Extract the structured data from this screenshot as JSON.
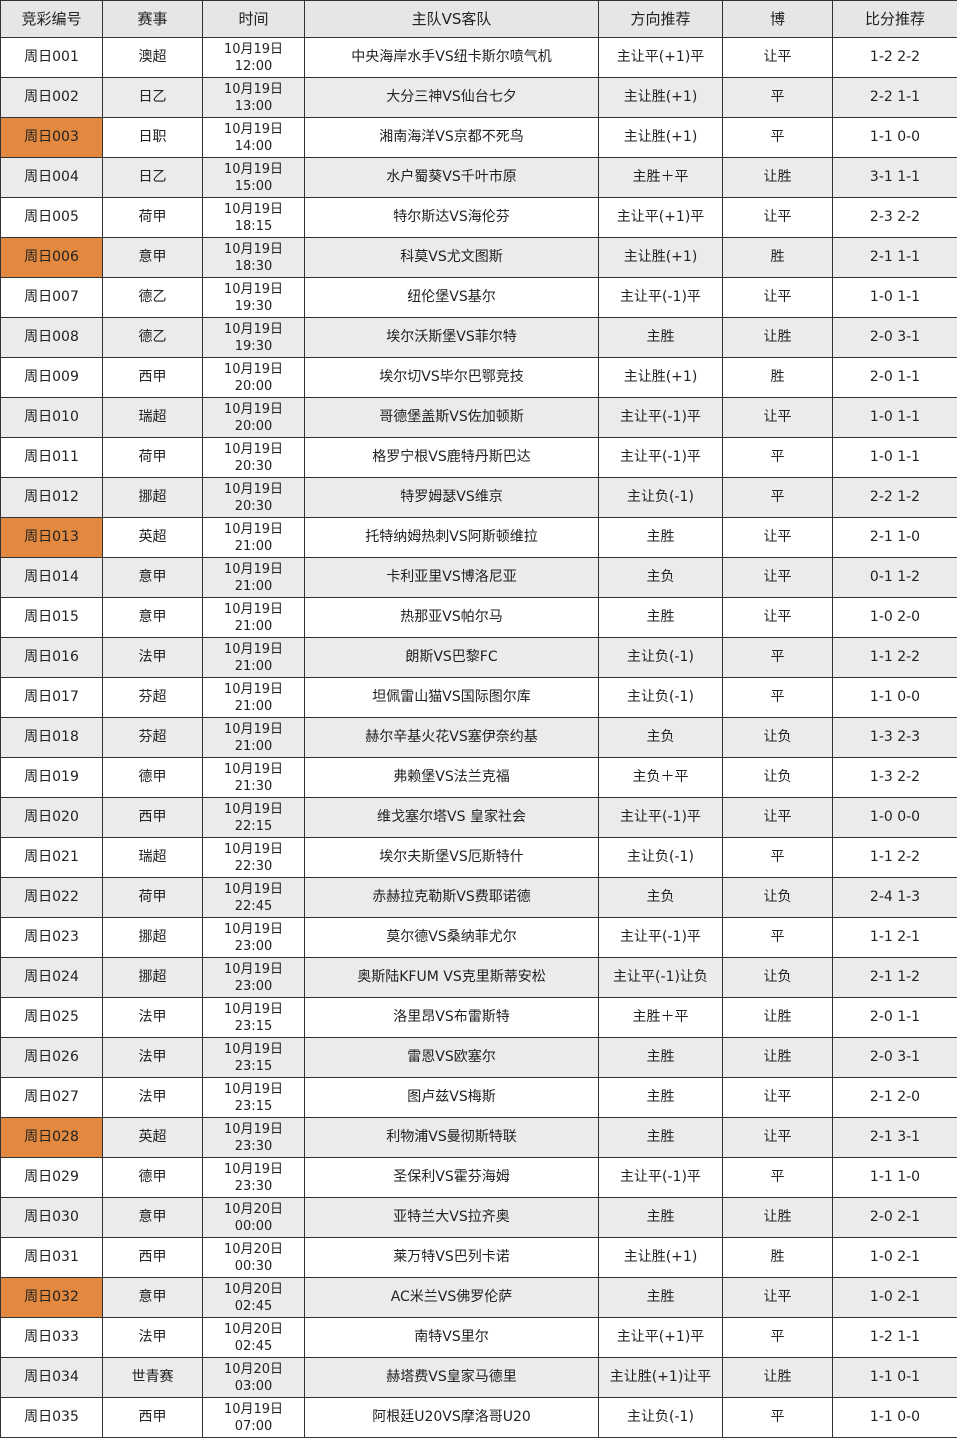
{
  "headers": [
    "竞彩编号",
    "赛事",
    "时间",
    "主队VS客队",
    "方向推荐",
    "博",
    "比分推荐"
  ],
  "highlight_color": "#e2893f",
  "rows": [
    {
      "id": "周日001",
      "league": "澳超",
      "date": "10月19日",
      "time": "12:00",
      "match": "中央海岸水手VS纽卡斯尔喷气机",
      "direction": "主让平(+1)平",
      "bo": "让平",
      "score": "1-2 2-2",
      "highlight": false
    },
    {
      "id": "周日002",
      "league": "日乙",
      "date": "10月19日",
      "time": "13:00",
      "match": "大分三神VS仙台七夕",
      "direction": "主让胜(+1)",
      "bo": "平",
      "score": "2-2 1-1",
      "highlight": false
    },
    {
      "id": "周日003",
      "league": "日职",
      "date": "10月19日",
      "time": "14:00",
      "match": "湘南海洋VS京都不死鸟",
      "direction": "主让胜(+1)",
      "bo": "平",
      "score": "1-1 0-0",
      "highlight": true
    },
    {
      "id": "周日004",
      "league": "日乙",
      "date": "10月19日",
      "time": "15:00",
      "match": "水户蜀葵VS千叶市原",
      "direction": "主胜＋平",
      "bo": "让胜",
      "score": "3-1 1-1",
      "highlight": false
    },
    {
      "id": "周日005",
      "league": "荷甲",
      "date": "10月19日",
      "time": "18:15",
      "match": "特尔斯达VS海伦芬",
      "direction": "主让平(+1)平",
      "bo": "让平",
      "score": "2-3 2-2",
      "highlight": false
    },
    {
      "id": "周日006",
      "league": "意甲",
      "date": "10月19日",
      "time": "18:30",
      "match": "科莫VS尤文图斯",
      "direction": "主让胜(+1)",
      "bo": "胜",
      "score": "2-1 1-1",
      "highlight": true
    },
    {
      "id": "周日007",
      "league": "德乙",
      "date": "10月19日",
      "time": "19:30",
      "match": "纽伦堡VS基尔",
      "direction": "主让平(-1)平",
      "bo": "让平",
      "score": "1-0 1-1",
      "highlight": false
    },
    {
      "id": "周日008",
      "league": "德乙",
      "date": "10月19日",
      "time": "19:30",
      "match": "埃尔沃斯堡VS菲尔特",
      "direction": "主胜",
      "bo": "让胜",
      "score": "2-0 3-1",
      "highlight": false
    },
    {
      "id": "周日009",
      "league": "西甲",
      "date": "10月19日",
      "time": "20:00",
      "match": "埃尔切VS毕尔巴鄂竞技",
      "direction": "主让胜(+1)",
      "bo": "胜",
      "score": "2-0 1-1",
      "highlight": false
    },
    {
      "id": "周日010",
      "league": "瑞超",
      "date": "10月19日",
      "time": "20:00",
      "match": "哥德堡盖斯VS佐加顿斯",
      "direction": "主让平(-1)平",
      "bo": "让平",
      "score": "1-0 1-1",
      "highlight": false
    },
    {
      "id": "周日011",
      "league": "荷甲",
      "date": "10月19日",
      "time": "20:30",
      "match": "格罗宁根VS鹿特丹斯巴达",
      "direction": "主让平(-1)平",
      "bo": "平",
      "score": "1-0 1-1",
      "highlight": false
    },
    {
      "id": "周日012",
      "league": "挪超",
      "date": "10月19日",
      "time": "20:30",
      "match": "特罗姆瑟VS维京",
      "direction": "主让负(-1)",
      "bo": "平",
      "score": "2-2 1-2",
      "highlight": false
    },
    {
      "id": "周日013",
      "league": "英超",
      "date": "10月19日",
      "time": "21:00",
      "match": "托特纳姆热刺VS阿斯顿维拉",
      "direction": "主胜",
      "bo": "让平",
      "score": "2-1 1-0",
      "highlight": true
    },
    {
      "id": "周日014",
      "league": "意甲",
      "date": "10月19日",
      "time": "21:00",
      "match": "卡利亚里VS博洛尼亚",
      "direction": "主负",
      "bo": "让平",
      "score": "0-1 1-2",
      "highlight": false
    },
    {
      "id": "周日015",
      "league": "意甲",
      "date": "10月19日",
      "time": "21:00",
      "match": "热那亚VS帕尔马",
      "direction": "主胜",
      "bo": "让平",
      "score": "1-0 2-0",
      "highlight": false
    },
    {
      "id": "周日016",
      "league": "法甲",
      "date": "10月19日",
      "time": "21:00",
      "match": "朗斯VS巴黎FC",
      "direction": "主让负(-1)",
      "bo": "平",
      "score": "1-1 2-2",
      "highlight": false
    },
    {
      "id": "周日017",
      "league": "芬超",
      "date": "10月19日",
      "time": "21:00",
      "match": "坦佩雷山猫VS国际图尔库",
      "direction": "主让负(-1)",
      "bo": "平",
      "score": "1-1 0-0",
      "highlight": false
    },
    {
      "id": "周日018",
      "league": "芬超",
      "date": "10月19日",
      "time": "21:00",
      "match": "赫尔辛基火花VS塞伊奈约基",
      "direction": "主负",
      "bo": "让负",
      "score": "1-3 2-3",
      "highlight": false
    },
    {
      "id": "周日019",
      "league": "德甲",
      "date": "10月19日",
      "time": "21:30",
      "match": "弗赖堡VS法兰克福",
      "direction": "主负＋平",
      "bo": "让负",
      "score": "1-3 2-2",
      "highlight": false
    },
    {
      "id": "周日020",
      "league": "西甲",
      "date": "10月19日",
      "time": "22:15",
      "match": "维戈塞尔塔VS 皇家社会",
      "direction": "主让平(-1)平",
      "bo": "让平",
      "score": "1-0 0-0",
      "highlight": false
    },
    {
      "id": "周日021",
      "league": "瑞超",
      "date": "10月19日",
      "time": "22:30",
      "match": "埃尔夫斯堡VS厄斯特什",
      "direction": "主让负(-1)",
      "bo": "平",
      "score": "1-1 2-2",
      "highlight": false
    },
    {
      "id": "周日022",
      "league": "荷甲",
      "date": "10月19日",
      "time": "22:45",
      "match": "赤赫拉克勒斯VS费耶诺德",
      "direction": "主负",
      "bo": "让负",
      "score": "2-4 1-3",
      "highlight": false
    },
    {
      "id": "周日023",
      "league": "挪超",
      "date": "10月19日",
      "time": "23:00",
      "match": "莫尔德VS桑纳菲尤尔",
      "direction": "主让平(-1)平",
      "bo": "平",
      "score": "1-1 2-1",
      "highlight": false
    },
    {
      "id": "周日024",
      "league": "挪超",
      "date": "10月19日",
      "time": "23:00",
      "match": "奥斯陆KFUM VS克里斯蒂安松",
      "direction": "主让平(-1)让负",
      "bo": "让负",
      "score": "2-1 1-2",
      "highlight": false
    },
    {
      "id": "周日025",
      "league": "法甲",
      "date": "10月19日",
      "time": "23:15",
      "match": "洛里昂VS布雷斯特",
      "direction": "主胜＋平",
      "bo": "让胜",
      "score": "2-0 1-1",
      "highlight": false
    },
    {
      "id": "周日026",
      "league": "法甲",
      "date": "10月19日",
      "time": "23:15",
      "match": "雷恩VS欧塞尔",
      "direction": "主胜",
      "bo": "让胜",
      "score": "2-0 3-1",
      "highlight": false
    },
    {
      "id": "周日027",
      "league": "法甲",
      "date": "10月19日",
      "time": "23:15",
      "match": "图卢兹VS梅斯",
      "direction": "主胜",
      "bo": "让平",
      "score": "2-1 2-0",
      "highlight": false
    },
    {
      "id": "周日028",
      "league": "英超",
      "date": "10月19日",
      "time": "23:30",
      "match": "利物浦VS曼彻斯特联",
      "direction": "主胜",
      "bo": "让平",
      "score": "2-1 3-1",
      "highlight": true
    },
    {
      "id": "周日029",
      "league": "德甲",
      "date": "10月19日",
      "time": "23:30",
      "match": "圣保利VS霍芬海姆",
      "direction": "主让平(-1)平",
      "bo": "平",
      "score": "1-1 1-0",
      "highlight": false
    },
    {
      "id": "周日030",
      "league": "意甲",
      "date": "10月20日",
      "time": "00:00",
      "match": "亚特兰大VS拉齐奥",
      "direction": "主胜",
      "bo": "让胜",
      "score": "2-0 2-1",
      "highlight": false
    },
    {
      "id": "周日031",
      "league": "西甲",
      "date": "10月20日",
      "time": "00:30",
      "match": "莱万特VS巴列卡诺",
      "direction": "主让胜(+1)",
      "bo": "胜",
      "score": "1-0 2-1",
      "highlight": false
    },
    {
      "id": "周日032",
      "league": "意甲",
      "date": "10月20日",
      "time": "02:45",
      "match": "AC米兰VS佛罗伦萨",
      "direction": "主胜",
      "bo": "让平",
      "score": "1-0 2-1",
      "highlight": true
    },
    {
      "id": "周日033",
      "league": "法甲",
      "date": "10月20日",
      "time": "02:45",
      "match": "南特VS里尔",
      "direction": "主让平(+1)平",
      "bo": "平",
      "score": "1-2 1-1",
      "highlight": false
    },
    {
      "id": "周日034",
      "league": "世青赛",
      "date": "10月20日",
      "time": "03:00",
      "match": "赫塔费VS皇家马德里",
      "direction": "主让胜(+1)让平",
      "bo": "让胜",
      "score": "1-1 0-1",
      "highlight": false
    },
    {
      "id": "周日035",
      "league": "西甲",
      "date": "10月19日",
      "time": "07:00",
      "match": "阿根廷U20VS摩洛哥U20",
      "direction": "主让负(-1)",
      "bo": "平",
      "score": "1-1 0-0",
      "highlight": false
    }
  ]
}
